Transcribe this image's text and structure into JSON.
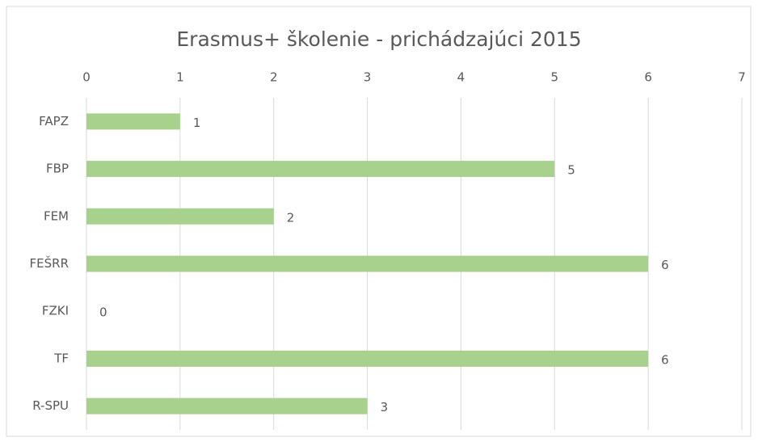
{
  "chart_data": {
    "type": "bar",
    "orientation": "horizontal",
    "title": "Erasmus+ školenie - prichádzajúci 2015",
    "categories": [
      "FAPZ",
      "FBP",
      "FEM",
      "FEŠRR",
      "FZKI",
      "TF",
      "R-SPU"
    ],
    "values": [
      1,
      5,
      2,
      6,
      0,
      6,
      3
    ],
    "color": "#a9d18e",
    "xlim": [
      0,
      7
    ],
    "xticks": [
      0,
      1,
      2,
      3,
      4,
      5,
      6,
      7
    ],
    "grid": true
  }
}
